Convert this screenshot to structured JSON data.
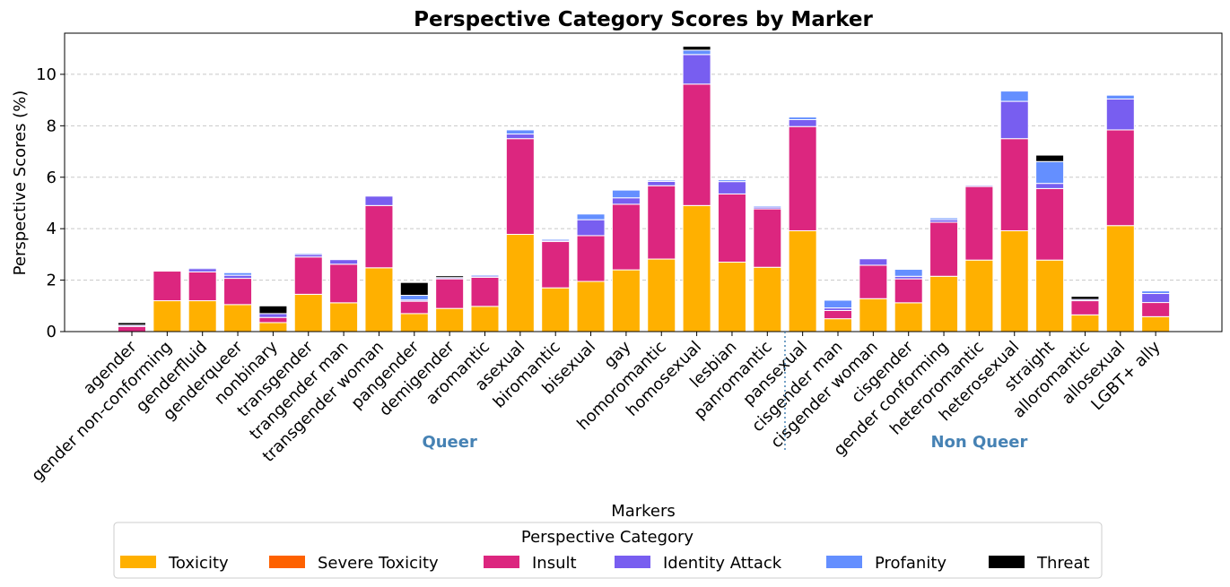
{
  "chart_data": {
    "type": "bar",
    "stacked": true,
    "title": "Perspective Category Scores by Marker",
    "xlabel": "Markers",
    "ylabel": "Perspective Scores (%)",
    "ylim": [
      0,
      11.6
    ],
    "yticks": [
      0,
      2,
      4,
      6,
      8,
      10
    ],
    "grid": "horizontal dashed",
    "categories": [
      "agender",
      "gender non-conforming",
      "genderfluid",
      "genderqueer",
      "nonbinary",
      "transgender",
      "trangender man",
      "transgender woman",
      "pangender",
      "demigender",
      "aromantic",
      "asexual",
      "biromantic",
      "bisexual",
      "gay",
      "homoromantic",
      "homosexual",
      "lesbian",
      "panromantic",
      "pansexual",
      "cisgender man",
      "cisgender woman",
      "cisgender",
      "gender conforming",
      "heteroromantic",
      "heterosexual",
      "straight",
      "alloromantic",
      "allosexual",
      "LGBT+ ally"
    ],
    "series": [
      {
        "name": "Toxicity",
        "color": "#ffb000",
        "values": [
          0.0,
          1.2,
          1.2,
          1.05,
          0.35,
          1.45,
          1.12,
          2.48,
          0.7,
          0.9,
          0.98,
          3.78,
          1.7,
          1.95,
          2.4,
          2.82,
          4.9,
          2.7,
          2.5,
          3.92,
          0.5,
          1.28,
          1.12,
          2.15,
          2.78,
          3.92,
          2.78,
          0.65,
          4.12,
          0.58
        ]
      },
      {
        "name": "Severe Toxicity",
        "color": "#fe6100",
        "values": [
          0,
          0,
          0,
          0,
          0,
          0,
          0,
          0,
          0,
          0,
          0,
          0,
          0,
          0,
          0,
          0,
          0,
          0,
          0,
          0,
          0,
          0,
          0,
          0,
          0,
          0,
          0,
          0,
          0,
          0
        ]
      },
      {
        "name": "Insult",
        "color": "#dc267f",
        "values": [
          0.2,
          1.15,
          1.12,
          1.02,
          0.2,
          1.45,
          1.5,
          2.42,
          0.48,
          1.15,
          1.13,
          3.72,
          1.8,
          1.78,
          2.55,
          2.85,
          4.72,
          2.65,
          2.27,
          4.05,
          0.32,
          1.3,
          0.93,
          2.1,
          2.86,
          3.58,
          2.78,
          0.55,
          3.72,
          0.55
        ]
      },
      {
        "name": "Identity Attack",
        "color": "#785ef0",
        "values": [
          0.05,
          0.0,
          0.13,
          0.12,
          0.15,
          0.1,
          0.18,
          0.37,
          0.05,
          0.05,
          0.05,
          0.18,
          0.05,
          0.62,
          0.25,
          0.17,
          1.15,
          0.48,
          0.07,
          0.27,
          0.1,
          0.25,
          0.1,
          0.1,
          0.05,
          1.45,
          0.2,
          0.05,
          1.2,
          0.35
        ]
      },
      {
        "name": "Profanity",
        "color": "#648fff",
        "values": [
          0.0,
          0.0,
          0.04,
          0.1,
          0.0,
          0.05,
          0.03,
          0.03,
          0.18,
          0.0,
          0.05,
          0.16,
          0.05,
          0.22,
          0.3,
          0.05,
          0.17,
          0.07,
          0.05,
          0.1,
          0.3,
          0.0,
          0.27,
          0.07,
          0.02,
          0.4,
          0.85,
          0.0,
          0.15,
          0.1
        ]
      },
      {
        "name": "Threat",
        "color": "#000000",
        "values": [
          0.1,
          0.0,
          0.0,
          0.0,
          0.3,
          0.0,
          0.0,
          0.0,
          0.5,
          0.07,
          0.0,
          0.0,
          0.0,
          0.0,
          0.0,
          0.0,
          0.15,
          0.0,
          0.0,
          0.0,
          0.0,
          0.0,
          0.0,
          0.0,
          0.0,
          0.0,
          0.25,
          0.12,
          0.0,
          0.0
        ]
      }
    ],
    "groups": [
      {
        "label": "Queer",
        "categories_end": 18
      },
      {
        "label": "Non Queer",
        "categories_start": 19
      }
    ],
    "legend": {
      "title": "Perspective Category",
      "placement": "bottom-center"
    }
  }
}
